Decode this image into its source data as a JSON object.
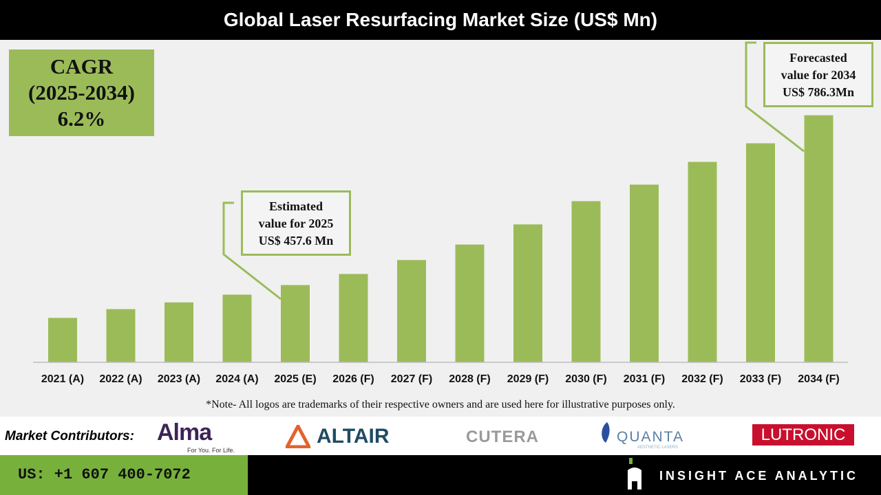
{
  "title": "Global Laser Resurfacing Market Size (US$ Mn)",
  "cagr": {
    "line1": "CAGR",
    "line2": "(2025-2034)",
    "line3": "6.2%"
  },
  "callouts": {
    "estimated": {
      "line1": "Estimated",
      "line2": "value for 2025",
      "line3": "US$ 457.6 Mn"
    },
    "forecast": {
      "line1": "Forecasted",
      "line2": "value for 2034",
      "line3": "US$ 786.3Mn"
    }
  },
  "note": "*Note- All logos are trademarks of their respective owners and are used here for illustrative purposes only.",
  "contributors": {
    "label": "Market Contributors:",
    "logos": [
      "Alma",
      "ALTAIR",
      "CUTERA",
      "QUANTA",
      "LUTRONIC"
    ],
    "alma_tagline": "For You. For Life.",
    "quanta_tagline": "AESTHETIC LASERS"
  },
  "footer": {
    "phone": "US: +1 607 400-7072",
    "brand": "INSIGHT ACE ANALYTIC"
  },
  "colors": {
    "bar": "#9bbb59",
    "header": "#000000",
    "footer_green": "#77b13b"
  },
  "chart_data": {
    "type": "bar",
    "title": "Global Laser Resurfacing Market Size (US$ Mn)",
    "categories": [
      "2021 (A)",
      "2022 (A)",
      "2023 (A)",
      "2024 (A)",
      "2025 (E)",
      "2026 (F)",
      "2027 (F)",
      "2028 (F)",
      "2029 (F)",
      "2030 (F)",
      "2031 (F)",
      "2032 (F)",
      "2033 (F)",
      "2034 (F)"
    ],
    "values": [
      394,
      411,
      424,
      439,
      457.6,
      479,
      506,
      536,
      575,
      620,
      652,
      696,
      732,
      786.3
    ],
    "ylim": [
      308,
      800
    ],
    "grid": false,
    "y_axis_visible": false
  }
}
